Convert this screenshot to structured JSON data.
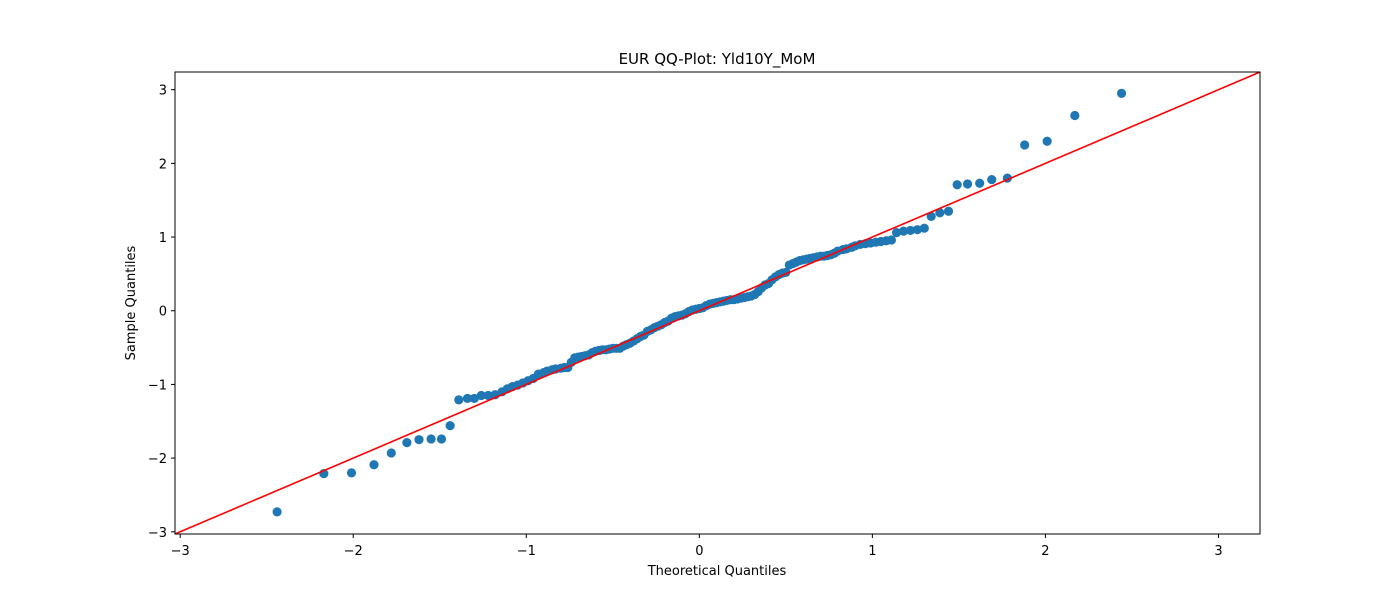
{
  "chart_data": {
    "type": "scatter",
    "title": "EUR QQ-Plot: Yld10Y_MoM",
    "xlabel": "Theoretical Quantiles",
    "ylabel": "Sample Quantiles",
    "xlim": [
      -3.03,
      3.24
    ],
    "ylim": [
      -3.03,
      3.24
    ],
    "xticks": [
      -3,
      -2,
      -1,
      0,
      1,
      2,
      3
    ],
    "yticks": [
      -3,
      -2,
      -1,
      0,
      1,
      2,
      3
    ],
    "xtick_labels": [
      "−3",
      "−2",
      "−1",
      "0",
      "1",
      "2",
      "3"
    ],
    "ytick_labels": [
      "−3",
      "−2",
      "−1",
      "0",
      "1",
      "2",
      "3"
    ],
    "grid": false,
    "colors": {
      "points": "#1f77b4",
      "line": "#ff0000"
    },
    "reference_line": {
      "slope": 1.0,
      "intercept": 0.0
    },
    "points": {
      "x": [
        -2.44,
        -2.17,
        -2.01,
        -1.88,
        -1.78,
        -1.69,
        -1.62,
        -1.55,
        -1.49,
        -1.44,
        -1.39,
        -1.34,
        -1.3,
        -1.26,
        -1.22,
        -1.18,
        -1.14,
        -1.11,
        -1.08,
        -1.05,
        -1.02,
        -0.99,
        -0.96,
        -0.93,
        -0.9,
        -0.88,
        -0.85,
        -0.83,
        -0.8,
        -0.78,
        -0.76,
        -0.74,
        -0.72,
        -0.7,
        -0.68,
        -0.66,
        -0.64,
        -0.62,
        -0.6,
        -0.58,
        -0.56,
        -0.54,
        -0.52,
        -0.5,
        -0.48,
        -0.46,
        -0.44,
        -0.42,
        -0.4,
        -0.38,
        -0.36,
        -0.34,
        -0.32,
        -0.3,
        -0.28,
        -0.26,
        -0.24,
        -0.22,
        -0.2,
        -0.18,
        -0.16,
        -0.14,
        -0.12,
        -0.1,
        -0.08,
        -0.06,
        -0.04,
        -0.02,
        0.0,
        0.02,
        0.04,
        0.06,
        0.08,
        0.1,
        0.12,
        0.14,
        0.16,
        0.18,
        0.2,
        0.22,
        0.24,
        0.26,
        0.28,
        0.3,
        0.32,
        0.34,
        0.36,
        0.38,
        0.4,
        0.42,
        0.44,
        0.46,
        0.48,
        0.5,
        0.52,
        0.54,
        0.56,
        0.58,
        0.6,
        0.62,
        0.64,
        0.66,
        0.68,
        0.7,
        0.72,
        0.74,
        0.76,
        0.78,
        0.8,
        0.83,
        0.85,
        0.88,
        0.9,
        0.93,
        0.96,
        0.99,
        1.02,
        1.05,
        1.08,
        1.11,
        1.14,
        1.18,
        1.22,
        1.26,
        1.3,
        1.34,
        1.39,
        1.44,
        1.49,
        1.55,
        1.62,
        1.69,
        1.78,
        1.88,
        2.01,
        2.17,
        2.44
      ],
      "y": [
        -2.73,
        -2.21,
        -2.2,
        -2.09,
        -1.93,
        -1.79,
        -1.75,
        -1.74,
        -1.74,
        -1.56,
        -1.21,
        -1.19,
        -1.19,
        -1.15,
        -1.15,
        -1.14,
        -1.1,
        -1.06,
        -1.03,
        -1.01,
        -0.98,
        -0.95,
        -0.92,
        -0.86,
        -0.84,
        -0.82,
        -0.8,
        -0.79,
        -0.78,
        -0.77,
        -0.77,
        -0.7,
        -0.64,
        -0.63,
        -0.62,
        -0.61,
        -0.6,
        -0.57,
        -0.55,
        -0.54,
        -0.53,
        -0.53,
        -0.52,
        -0.51,
        -0.51,
        -0.51,
        -0.48,
        -0.46,
        -0.44,
        -0.41,
        -0.38,
        -0.35,
        -0.33,
        -0.28,
        -0.26,
        -0.23,
        -0.21,
        -0.19,
        -0.16,
        -0.14,
        -0.1,
        -0.08,
        -0.07,
        -0.06,
        -0.04,
        -0.01,
        0.01,
        0.02,
        0.03,
        0.04,
        0.07,
        0.09,
        0.1,
        0.11,
        0.12,
        0.13,
        0.14,
        0.15,
        0.15,
        0.16,
        0.17,
        0.18,
        0.19,
        0.2,
        0.22,
        0.26,
        0.31,
        0.35,
        0.37,
        0.42,
        0.46,
        0.49,
        0.51,
        0.52,
        0.62,
        0.64,
        0.66,
        0.68,
        0.69,
        0.7,
        0.71,
        0.72,
        0.73,
        0.74,
        0.74,
        0.75,
        0.76,
        0.78,
        0.81,
        0.83,
        0.84,
        0.86,
        0.88,
        0.9,
        0.91,
        0.92,
        0.93,
        0.94,
        0.95,
        0.96,
        1.06,
        1.08,
        1.09,
        1.1,
        1.12,
        1.28,
        1.33,
        1.35,
        1.71,
        1.72,
        1.73,
        1.78,
        1.8,
        2.25,
        2.3,
        2.65,
        2.95
      ]
    }
  }
}
